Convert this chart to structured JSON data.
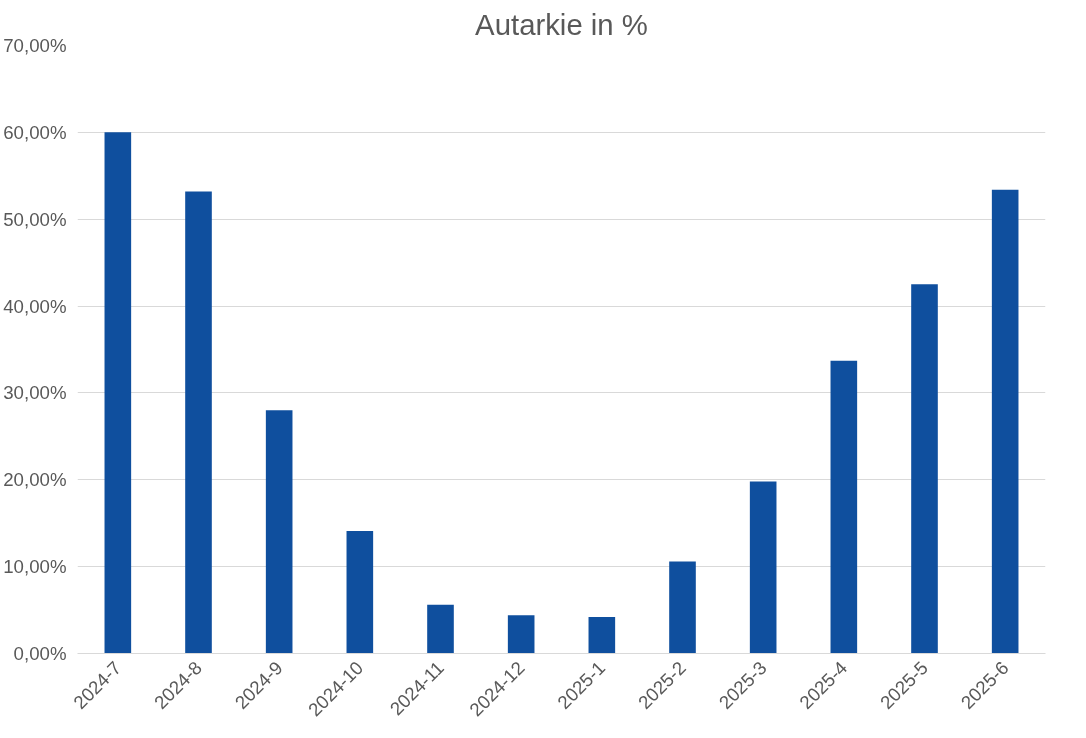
{
  "chart_data": {
    "type": "bar",
    "title": "Autarkie in %",
    "categories": [
      "2024-7",
      "2024-8",
      "2024-9",
      "2024-10",
      "2024-11",
      "2024-12",
      "2025-1",
      "2025-2",
      "2025-3",
      "2025-4",
      "2025-5",
      "2025-6"
    ],
    "values": [
      60.0,
      53.2,
      28.0,
      14.1,
      5.6,
      4.4,
      4.2,
      10.6,
      19.8,
      33.7,
      42.5,
      53.4
    ],
    "color": "#0f4f9e",
    "ylim": [
      0,
      70
    ],
    "yticks": [
      {
        "value": 0,
        "label": "0,00%"
      },
      {
        "value": 10,
        "label": "10,00%"
      },
      {
        "value": 20,
        "label": "20,00%"
      },
      {
        "value": 30,
        "label": "30,00%"
      },
      {
        "value": 40,
        "label": "40,00%"
      },
      {
        "value": 50,
        "label": "50,00%"
      },
      {
        "value": 60,
        "label": "60,00%"
      },
      {
        "value": 70,
        "label": "70,00%"
      }
    ],
    "grid": "y"
  }
}
